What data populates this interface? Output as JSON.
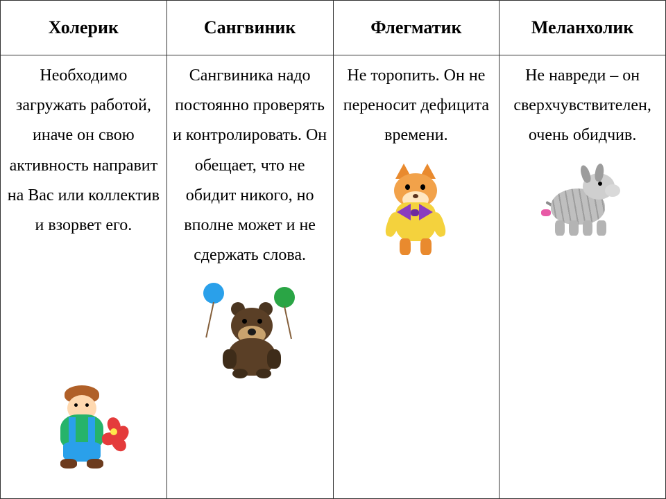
{
  "table": {
    "border_color": "#333333",
    "header_bg": "#ffffff",
    "body_bg": "#ffffff",
    "header_fontsize_pt": 20,
    "cell_fontsize_pt": 18,
    "font_family": "Times New Roman",
    "columns": [
      {
        "header": "Холерик",
        "description": "Необходимо загружать работой, иначе он свою активность направит на Вас или коллектив и взорвет его.",
        "illustration": "karlson-icon",
        "illustration_label": "Карлсон",
        "image_position": "bottom",
        "palette": {
          "hair": "#b06028",
          "skin": "#ffd9b0",
          "shirt": "#26b36a",
          "overalls": "#2aa0ea",
          "shoes": "#6c3b1e",
          "propeller": "#e43b3b",
          "propeller_hub": "#ffe84b"
        }
      },
      {
        "header": "Сангвиник",
        "description": "Сангвиника надо постоянно проверять и контролировать. Он обещает, что не обидит никого, но вполне может и не сдержать слова.",
        "illustration": "winnie-pooh-icon",
        "illustration_label": "Винни-Пух с шариками",
        "image_position": "below-text",
        "palette": {
          "fur_dark": "#5a3f26",
          "fur_darker": "#3e2c19",
          "ear": "#4a3520",
          "snout": "#c9a36e",
          "nose": "#1b1b1b",
          "balloon_blue": "#2aa0ea",
          "balloon_green": "#2aa545",
          "string": "#85603c"
        }
      },
      {
        "header": "Флегматик",
        "description": "Не торопить. Он не переносит дефицита времени.",
        "illustration": "leopold-cat-icon",
        "illustration_label": "Кот Леопольд",
        "image_position": "below-text",
        "palette": {
          "fur": "#f2a24a",
          "fur_dark": "#e98a2e",
          "muzzle": "#ffe7c2",
          "jacket": "#f4d23d",
          "bow": "#8a3cc0",
          "bow_center": "#6e2aa0",
          "nose": "#5a3320"
        }
      },
      {
        "header": "Меланхолик",
        "description": "Не навреди – он сверхчувствителен, очень обидчив.",
        "illustration": "eeyore-donkey-icon",
        "illustration_label": "Ослик Иа",
        "image_position": "below-text",
        "palette": {
          "body": "#bfbfbf",
          "body_light": "#cfcfcf",
          "body_lighter": "#d9d9d9",
          "ear": "#9c9c9c",
          "leg": "#b4b4b4",
          "tail": "#8d8d8d",
          "bow": "#e85aa6",
          "stripe": "rgba(0,0,0,.18)"
        }
      }
    ]
  }
}
